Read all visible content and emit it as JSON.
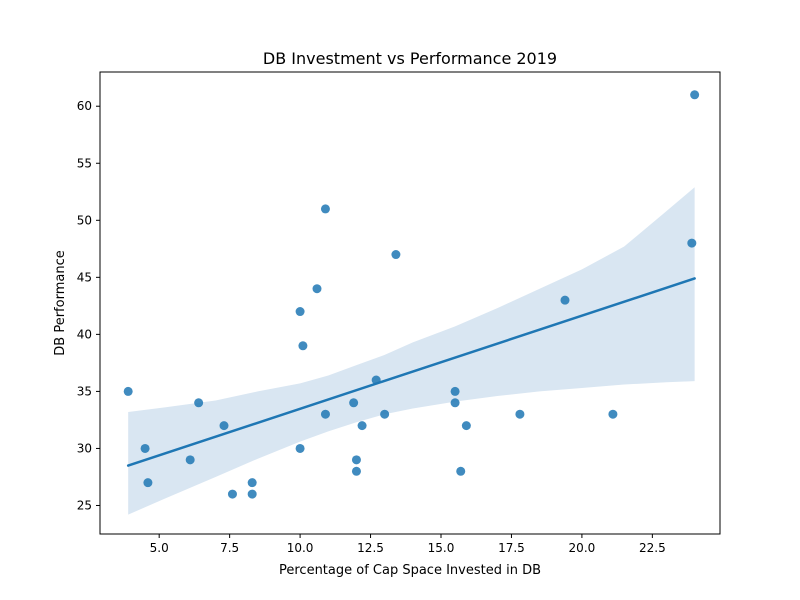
{
  "chart_data": {
    "type": "scatter",
    "title": "DB Investment vs Performance 2019",
    "xlabel": "Percentage of Cap Space Invested in DB",
    "ylabel": "DB Performance",
    "xlim": [
      2.9,
      24.9
    ],
    "ylim": [
      22.5,
      63.0
    ],
    "xticks": [
      "5.0",
      "7.5",
      "10.0",
      "12.5",
      "15.0",
      "17.5",
      "20.0",
      "22.5"
    ],
    "xtick_values": [
      5.0,
      7.5,
      10.0,
      12.5,
      15.0,
      17.5,
      20.0,
      22.5
    ],
    "yticks": [
      "25",
      "30",
      "35",
      "40",
      "45",
      "50",
      "55",
      "60"
    ],
    "ytick_values": [
      25,
      30,
      35,
      40,
      45,
      50,
      55,
      60
    ],
    "grid": false,
    "points": [
      {
        "x": 3.9,
        "y": 35
      },
      {
        "x": 4.5,
        "y": 30
      },
      {
        "x": 4.6,
        "y": 27
      },
      {
        "x": 6.1,
        "y": 29
      },
      {
        "x": 6.4,
        "y": 34
      },
      {
        "x": 7.3,
        "y": 32
      },
      {
        "x": 7.6,
        "y": 26
      },
      {
        "x": 8.3,
        "y": 27
      },
      {
        "x": 8.3,
        "y": 26
      },
      {
        "x": 10.0,
        "y": 42
      },
      {
        "x": 10.1,
        "y": 39
      },
      {
        "x": 10.0,
        "y": 30
      },
      {
        "x": 10.6,
        "y": 44
      },
      {
        "x": 10.9,
        "y": 51
      },
      {
        "x": 10.9,
        "y": 33
      },
      {
        "x": 11.9,
        "y": 34
      },
      {
        "x": 12.0,
        "y": 29
      },
      {
        "x": 12.0,
        "y": 28
      },
      {
        "x": 12.2,
        "y": 32
      },
      {
        "x": 12.7,
        "y": 36
      },
      {
        "x": 13.0,
        "y": 33
      },
      {
        "x": 13.4,
        "y": 47
      },
      {
        "x": 15.5,
        "y": 35
      },
      {
        "x": 15.5,
        "y": 34
      },
      {
        "x": 15.7,
        "y": 28
      },
      {
        "x": 15.9,
        "y": 32
      },
      {
        "x": 17.8,
        "y": 33
      },
      {
        "x": 19.4,
        "y": 43
      },
      {
        "x": 21.1,
        "y": 33
      },
      {
        "x": 23.9,
        "y": 48
      },
      {
        "x": 24.0,
        "y": 61
      }
    ],
    "regression": {
      "x": [
        3.9,
        24.0
      ],
      "y": [
        28.5,
        44.9
      ]
    },
    "confidence_band": {
      "x": [
        3.9,
        5.2,
        7.0,
        8.5,
        10.0,
        11.0,
        12.0,
        13.0,
        14.0,
        15.5,
        17.0,
        18.5,
        20.0,
        21.5,
        23.0,
        24.0
      ],
      "lower": [
        24.2,
        25.6,
        27.5,
        29.1,
        30.6,
        31.5,
        32.3,
        33.0,
        33.5,
        34.1,
        34.6,
        35.0,
        35.3,
        35.6,
        35.8,
        35.9
      ],
      "upper": [
        33.2,
        33.6,
        34.2,
        35.0,
        35.7,
        36.4,
        37.3,
        38.2,
        39.3,
        40.7,
        42.3,
        44.0,
        45.7,
        47.7,
        50.8,
        52.9
      ]
    },
    "colors": {
      "points": "#1f77b4",
      "line": "#1f77b4",
      "band": "#d9e6f2",
      "axes": "#000000"
    }
  }
}
